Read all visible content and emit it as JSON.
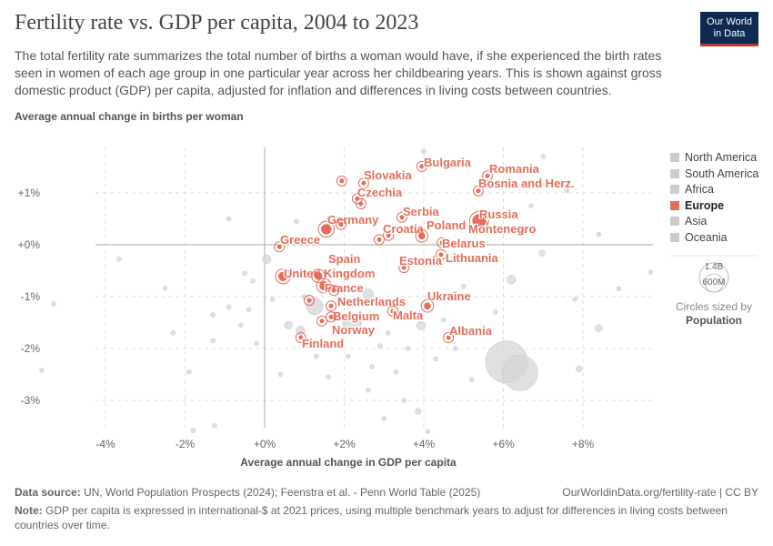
{
  "header": {
    "title": "Fertility rate vs. GDP per capita, 2004 to 2023",
    "subtitle": "The total fertility rate summarizes the total number of births a woman would have, if she experienced the birth rates seen in women of each age group in one particular year across her childbearing years. This is shown against gross domestic product (GDP) per capita, adjusted for inflation and differences in living costs between countries.",
    "logo": "Our World in Data"
  },
  "legend": {
    "items": [
      {
        "label": "North America",
        "color": "#cccccc"
      },
      {
        "label": "South America",
        "color": "#cccccc"
      },
      {
        "label": "Africa",
        "color": "#cccccc"
      },
      {
        "label": "Europe",
        "color": "#e56e5a"
      },
      {
        "label": "Asia",
        "color": "#cccccc"
      },
      {
        "label": "Oceania",
        "color": "#cccccc"
      }
    ],
    "size_big": "1.4B",
    "size_small": "600M",
    "size_note": "Circles sized by",
    "size_var": "Population"
  },
  "footer": {
    "source_label": "Data source:",
    "source": "UN, World Population Prospects (2024); Feenstra et al. - Penn World Table (2025)",
    "url": "OurWorldinData.org/fertility-rate | CC BY",
    "note_label": "Note:",
    "note": "GDP per capita is expressed in international-$ at 2021 prices, using multiple benchmark years to adjust for differences in living costs between countries over time."
  },
  "chart_data": {
    "type": "scatter",
    "title": "Fertility rate vs. GDP per capita, 2004 to 2023",
    "xlabel": "Average annual change in GDP per capita",
    "ylabel": "Average annual change in births per woman",
    "xlim": [
      -5.9,
      9.8
    ],
    "ylim": [
      -3.7,
      1.8
    ],
    "xticks": [
      "-4%",
      "-2%",
      "+0%",
      "+2%",
      "+4%",
      "+6%",
      "+8%"
    ],
    "xtick_values": [
      -4,
      -2,
      0,
      2,
      4,
      6,
      8
    ],
    "yticks": [
      "+1%",
      "+0%",
      "-1%",
      "-2%",
      "-3%"
    ],
    "ytick_values": [
      1,
      0,
      -1,
      -2,
      -3
    ],
    "grid": true,
    "highlight_color": "#e56e5a",
    "other_color": "#cccccc",
    "europe": [
      {
        "name": "Bulgaria",
        "x": 3.95,
        "y": 1.51
      },
      {
        "name": "Romania",
        "x": 5.6,
        "y": 1.33
      },
      {
        "name": "Bosnia and Herz.",
        "x": 5.37,
        "y": 1.04
      },
      {
        "name": "Slovakia",
        "x": 2.49,
        "y": 1.19
      },
      {
        "name": "",
        "x": 1.94,
        "y": 1.23
      },
      {
        "name": "Czechia",
        "x": 2.33,
        "y": 0.89
      },
      {
        "name": "",
        "x": 2.42,
        "y": 0.79
      },
      {
        "name": "Serbia",
        "x": 3.45,
        "y": 0.53
      },
      {
        "name": "Germany",
        "x": 1.55,
        "y": 0.3,
        "pop": 84
      },
      {
        "name": "",
        "x": 1.92,
        "y": 0.39
      },
      {
        "name": "Croatia",
        "x": 3.11,
        "y": 0.18
      },
      {
        "name": "",
        "x": 2.88,
        "y": 0.1
      },
      {
        "name": "Poland",
        "x": 3.95,
        "y": 0.17,
        "pop": 38
      },
      {
        "name": "Russia",
        "x": 5.39,
        "y": 0.46,
        "pop": 144
      },
      {
        "name": "Montenegro",
        "x": 5.46,
        "y": 0.4
      },
      {
        "name": "Belarus",
        "x": 4.46,
        "y": 0.04
      },
      {
        "name": "Greece",
        "x": 0.37,
        "y": -0.04
      },
      {
        "name": "Lithuania",
        "x": 4.43,
        "y": -0.19
      },
      {
        "name": "Estonia",
        "x": 3.5,
        "y": -0.44
      },
      {
        "name": "United Kingdom",
        "x": 0.46,
        "y": -0.61,
        "pop": 68
      },
      {
        "name": "Spain",
        "x": 1.35,
        "y": -0.6,
        "pop": 48
      },
      {
        "name": "France",
        "x": 1.49,
        "y": -0.79,
        "pop": 66
      },
      {
        "name": "Netherlands",
        "x": 1.74,
        "y": -0.88
      },
      {
        "name": "Belgium",
        "x": 1.67,
        "y": -1.18
      },
      {
        "name": "",
        "x": 1.12,
        "y": -1.07
      },
      {
        "name": "Norway",
        "x": 1.67,
        "y": -1.39
      },
      {
        "name": "",
        "x": 1.44,
        "y": -1.47
      },
      {
        "name": "Malta",
        "x": 3.22,
        "y": -1.28
      },
      {
        "name": "Ukraine",
        "x": 4.09,
        "y": -1.18,
        "pop": 38
      },
      {
        "name": "Finland",
        "x": 0.91,
        "y": -1.79
      },
      {
        "name": "Albania",
        "x": 4.62,
        "y": -1.79
      }
    ],
    "others": [
      {
        "x": 6.08,
        "y": -2.26,
        "pop": 1400
      },
      {
        "x": 6.42,
        "y": -2.47,
        "pop": 1000
      },
      {
        "x": 8.4,
        "y": -1.61,
        "pop": 40
      },
      {
        "x": 7.9,
        "y": -2.39,
        "pop": 30
      },
      {
        "x": 9.7,
        "y": -0.53
      },
      {
        "x": 6.97,
        "y": -0.16,
        "pop": 30
      },
      {
        "x": 6.2,
        "y": -0.67,
        "pop": 60
      },
      {
        "x": 0.05,
        "y": -0.28,
        "pop": 60
      },
      {
        "x": -3.66,
        "y": -0.28
      },
      {
        "x": -5.3,
        "y": -1.14
      },
      {
        "x": -5.6,
        "y": -2.42
      },
      {
        "x": -1.8,
        "y": -3.58
      },
      {
        "x": -1.26,
        "y": -3.49
      },
      {
        "x": 4.0,
        "y": 1.8
      },
      {
        "x": 1.26,
        "y": -1.19,
        "pop": 220
      },
      {
        "x": 3.93,
        "y": -1.56,
        "pop": 60
      },
      {
        "x": 3.86,
        "y": -3.21,
        "pop": 30
      },
      {
        "x": -0.9,
        "y": 0.5
      },
      {
        "x": 0.8,
        "y": 0.45
      },
      {
        "x": -0.5,
        "y": -0.55
      },
      {
        "x": -0.3,
        "y": -0.7
      },
      {
        "x": -0.9,
        "y": -1.2
      },
      {
        "x": -0.6,
        "y": -1.55
      },
      {
        "x": -1.3,
        "y": -1.85
      },
      {
        "x": -0.2,
        "y": -1.9
      },
      {
        "x": 0.6,
        "y": -1.55,
        "pop": 50
      },
      {
        "x": 0.9,
        "y": -1.65,
        "pop": 60
      },
      {
        "x": 2.2,
        "y": -1.5,
        "pop": 280
      },
      {
        "x": 2.6,
        "y": -0.95,
        "pop": 90
      },
      {
        "x": 3.1,
        "y": -1.7
      },
      {
        "x": 3.6,
        "y": -2.0
      },
      {
        "x": 3.3,
        "y": -2.45
      },
      {
        "x": 2.7,
        "y": -2.35
      },
      {
        "x": 2.1,
        "y": -2.15
      },
      {
        "x": 1.6,
        "y": -2.55
      },
      {
        "x": 0.4,
        "y": -2.5
      },
      {
        "x": -1.9,
        "y": -2.45
      },
      {
        "x": -2.3,
        "y": -1.7
      },
      {
        "x": -2.5,
        "y": -0.84
      },
      {
        "x": -1.3,
        "y": -1.35
      },
      {
        "x": 4.3,
        "y": -2.2
      },
      {
        "x": 4.8,
        "y": -2.0
      },
      {
        "x": 5.2,
        "y": -2.6
      },
      {
        "x": 5.5,
        "y": -1.7
      },
      {
        "x": 5.8,
        "y": -1.3
      },
      {
        "x": 5.0,
        "y": -0.8
      },
      {
        "x": 7.0,
        "y": 1.7
      },
      {
        "x": 6.7,
        "y": 0.75
      },
      {
        "x": 7.6,
        "y": 1.05
      },
      {
        "x": 8.4,
        "y": 0.2
      },
      {
        "x": 8.9,
        "y": -0.85
      },
      {
        "x": 7.8,
        "y": -1.05
      },
      {
        "x": 2.6,
        "y": -2.8
      },
      {
        "x": 3.5,
        "y": -3.0
      },
      {
        "x": 3.0,
        "y": -3.35
      },
      {
        "x": 4.1,
        "y": -3.6
      },
      {
        "x": 1.3,
        "y": -2.15
      },
      {
        "x": 4.5,
        "y": -1.45
      },
      {
        "x": 2.9,
        "y": -1.95
      },
      {
        "x": 1.0,
        "y": -1.0
      },
      {
        "x": -0.4,
        "y": -1.25
      },
      {
        "x": 0.2,
        "y": -1.05
      }
    ]
  }
}
